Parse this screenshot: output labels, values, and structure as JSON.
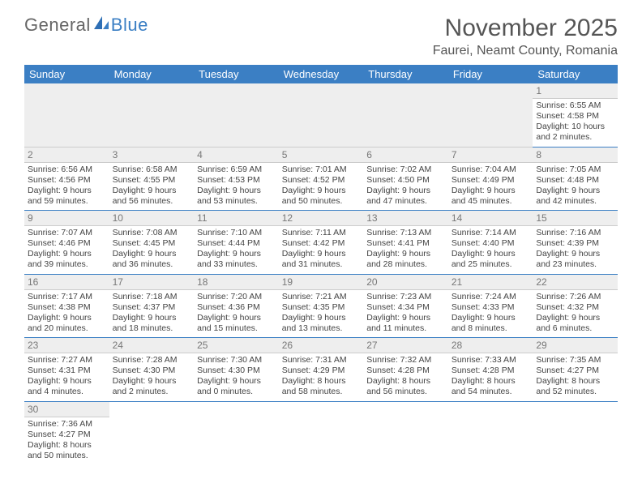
{
  "logo": {
    "part1": "General",
    "part2": "Blue"
  },
  "title": "November 2025",
  "location": "Faurei, Neamt County, Romania",
  "colors": {
    "header_bg": "#3b7fc4",
    "header_fg": "#ffffff",
    "daynum_bg": "#eeeeee",
    "row_border": "#3b7fc4",
    "text": "#444444",
    "title": "#555555"
  },
  "weekdays": [
    "Sunday",
    "Monday",
    "Tuesday",
    "Wednesday",
    "Thursday",
    "Friday",
    "Saturday"
  ],
  "weeks": [
    [
      null,
      null,
      null,
      null,
      null,
      null,
      {
        "n": "1",
        "sunrise": "6:55 AM",
        "sunset": "4:58 PM",
        "dl": "10 hours and 2 minutes."
      }
    ],
    [
      {
        "n": "2",
        "sunrise": "6:56 AM",
        "sunset": "4:56 PM",
        "dl": "9 hours and 59 minutes."
      },
      {
        "n": "3",
        "sunrise": "6:58 AM",
        "sunset": "4:55 PM",
        "dl": "9 hours and 56 minutes."
      },
      {
        "n": "4",
        "sunrise": "6:59 AM",
        "sunset": "4:53 PM",
        "dl": "9 hours and 53 minutes."
      },
      {
        "n": "5",
        "sunrise": "7:01 AM",
        "sunset": "4:52 PM",
        "dl": "9 hours and 50 minutes."
      },
      {
        "n": "6",
        "sunrise": "7:02 AM",
        "sunset": "4:50 PM",
        "dl": "9 hours and 47 minutes."
      },
      {
        "n": "7",
        "sunrise": "7:04 AM",
        "sunset": "4:49 PM",
        "dl": "9 hours and 45 minutes."
      },
      {
        "n": "8",
        "sunrise": "7:05 AM",
        "sunset": "4:48 PM",
        "dl": "9 hours and 42 minutes."
      }
    ],
    [
      {
        "n": "9",
        "sunrise": "7:07 AM",
        "sunset": "4:46 PM",
        "dl": "9 hours and 39 minutes."
      },
      {
        "n": "10",
        "sunrise": "7:08 AM",
        "sunset": "4:45 PM",
        "dl": "9 hours and 36 minutes."
      },
      {
        "n": "11",
        "sunrise": "7:10 AM",
        "sunset": "4:44 PM",
        "dl": "9 hours and 33 minutes."
      },
      {
        "n": "12",
        "sunrise": "7:11 AM",
        "sunset": "4:42 PM",
        "dl": "9 hours and 31 minutes."
      },
      {
        "n": "13",
        "sunrise": "7:13 AM",
        "sunset": "4:41 PM",
        "dl": "9 hours and 28 minutes."
      },
      {
        "n": "14",
        "sunrise": "7:14 AM",
        "sunset": "4:40 PM",
        "dl": "9 hours and 25 minutes."
      },
      {
        "n": "15",
        "sunrise": "7:16 AM",
        "sunset": "4:39 PM",
        "dl": "9 hours and 23 minutes."
      }
    ],
    [
      {
        "n": "16",
        "sunrise": "7:17 AM",
        "sunset": "4:38 PM",
        "dl": "9 hours and 20 minutes."
      },
      {
        "n": "17",
        "sunrise": "7:18 AM",
        "sunset": "4:37 PM",
        "dl": "9 hours and 18 minutes."
      },
      {
        "n": "18",
        "sunrise": "7:20 AM",
        "sunset": "4:36 PM",
        "dl": "9 hours and 15 minutes."
      },
      {
        "n": "19",
        "sunrise": "7:21 AM",
        "sunset": "4:35 PM",
        "dl": "9 hours and 13 minutes."
      },
      {
        "n": "20",
        "sunrise": "7:23 AM",
        "sunset": "4:34 PM",
        "dl": "9 hours and 11 minutes."
      },
      {
        "n": "21",
        "sunrise": "7:24 AM",
        "sunset": "4:33 PM",
        "dl": "9 hours and 8 minutes."
      },
      {
        "n": "22",
        "sunrise": "7:26 AM",
        "sunset": "4:32 PM",
        "dl": "9 hours and 6 minutes."
      }
    ],
    [
      {
        "n": "23",
        "sunrise": "7:27 AM",
        "sunset": "4:31 PM",
        "dl": "9 hours and 4 minutes."
      },
      {
        "n": "24",
        "sunrise": "7:28 AM",
        "sunset": "4:30 PM",
        "dl": "9 hours and 2 minutes."
      },
      {
        "n": "25",
        "sunrise": "7:30 AM",
        "sunset": "4:30 PM",
        "dl": "9 hours and 0 minutes."
      },
      {
        "n": "26",
        "sunrise": "7:31 AM",
        "sunset": "4:29 PM",
        "dl": "8 hours and 58 minutes."
      },
      {
        "n": "27",
        "sunrise": "7:32 AM",
        "sunset": "4:28 PM",
        "dl": "8 hours and 56 minutes."
      },
      {
        "n": "28",
        "sunrise": "7:33 AM",
        "sunset": "4:28 PM",
        "dl": "8 hours and 54 minutes."
      },
      {
        "n": "29",
        "sunrise": "7:35 AM",
        "sunset": "4:27 PM",
        "dl": "8 hours and 52 minutes."
      }
    ],
    [
      {
        "n": "30",
        "sunrise": "7:36 AM",
        "sunset": "4:27 PM",
        "dl": "8 hours and 50 minutes."
      },
      null,
      null,
      null,
      null,
      null,
      null
    ]
  ],
  "labels": {
    "sunrise": "Sunrise: ",
    "sunset": "Sunset: ",
    "daylight": "Daylight: "
  }
}
